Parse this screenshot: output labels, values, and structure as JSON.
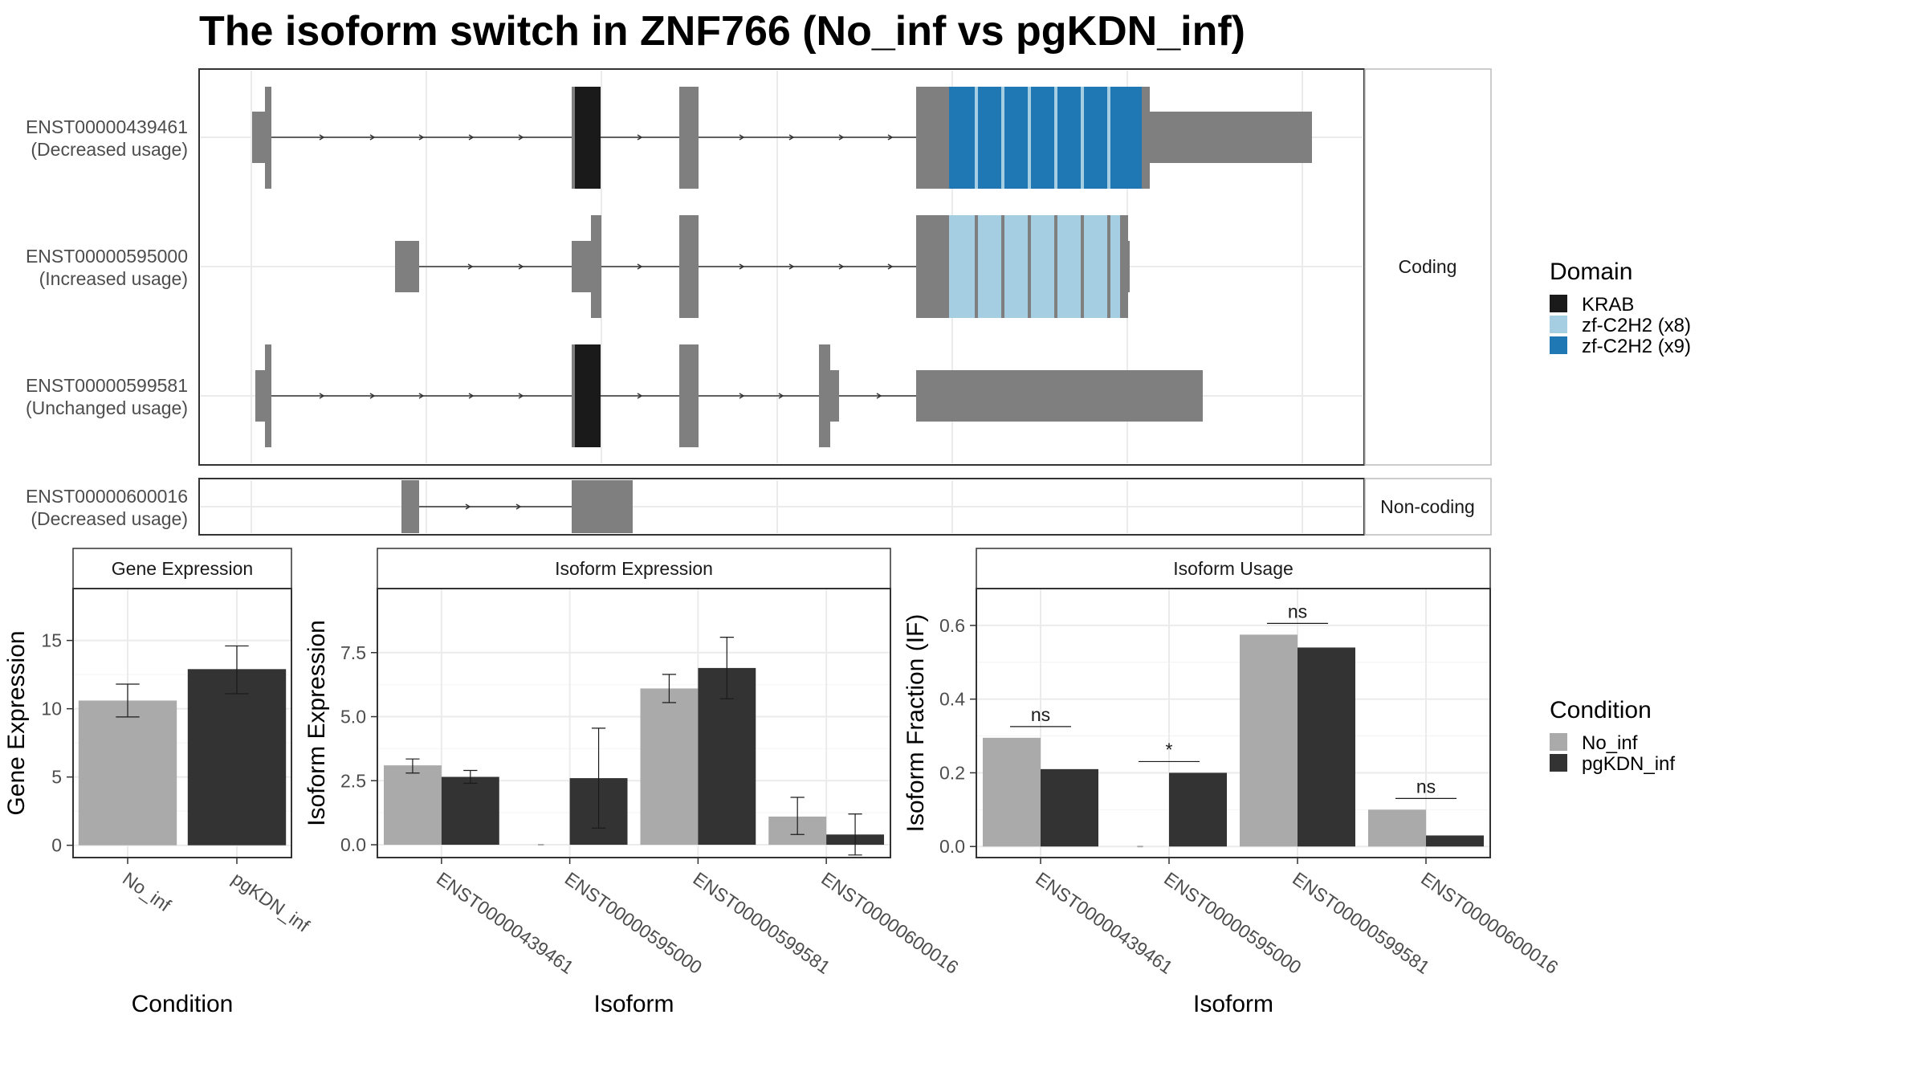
{
  "title": "The isoform switch in ZNF766 (No_inf vs pgKDN_inf)",
  "structure": {
    "coding_strip": "Coding",
    "noncoding_strip": "Non-coding",
    "isoforms": [
      {
        "id": "ENST00000439461",
        "usage": "(Decreased usage)",
        "group": "Coding"
      },
      {
        "id": "ENST00000595000",
        "usage": "(Increased usage)",
        "group": "Coding"
      },
      {
        "id": "ENST00000599581",
        "usage": "(Unchanged usage)",
        "group": "Coding"
      },
      {
        "id": "ENST00000600016",
        "usage": "(Decreased usage)",
        "group": "Non-coding"
      }
    ]
  },
  "domain_legend": {
    "title": "Domain",
    "items": [
      {
        "label": "KRAB",
        "color": "#1a1a1a"
      },
      {
        "label": "zf-C2H2 (x8)",
        "color": "#a6cee3"
      },
      {
        "label": "zf-C2H2 (x9)",
        "color": "#1f78b4"
      }
    ]
  },
  "condition_legend": {
    "title": "Condition",
    "items": [
      {
        "label": "No_inf",
        "color": "#aaaaaa"
      },
      {
        "label": "pgKDN_inf",
        "color": "#333333"
      }
    ]
  },
  "chart_data": [
    {
      "type": "bar",
      "title": "Gene Expression",
      "xlabel": "Condition",
      "ylabel": "Gene Expression",
      "categories": [
        "No_inf",
        "pgKDN_inf"
      ],
      "values": [
        10.6,
        12.9
      ],
      "error": [
        [
          9.4,
          11.8
        ],
        [
          11.1,
          14.6
        ]
      ],
      "ylim": [
        -0.9,
        18.8
      ],
      "yticks": [
        0,
        5,
        10,
        15
      ],
      "ytick_labels": [
        "0",
        "5",
        "10",
        "15"
      ],
      "grid": true
    },
    {
      "type": "bar",
      "title": "Isoform Expression",
      "xlabel": "Isoform",
      "ylabel": "Isoform Expression",
      "categories": [
        "ENST00000439461",
        "ENST00000595000",
        "ENST00000599581",
        "ENST00000600016"
      ],
      "series": [
        {
          "name": "No_inf",
          "values": [
            3.1,
            0.0,
            6.1,
            1.1
          ],
          "error": [
            [
              2.8,
              3.35
            ],
            [
              0.0,
              0.0
            ],
            [
              5.55,
              6.65
            ],
            [
              0.4,
              1.85
            ]
          ]
        },
        {
          "name": "pgKDN_inf",
          "values": [
            2.65,
            2.6,
            6.9,
            0.4
          ],
          "error": [
            [
              2.4,
              2.9
            ],
            [
              0.65,
              4.55
            ],
            [
              5.7,
              8.1
            ],
            [
              -0.4,
              1.2
            ]
          ]
        }
      ],
      "ylim": [
        -0.5,
        10.0
      ],
      "yticks": [
        0,
        2.5,
        5,
        7.5
      ],
      "ytick_labels": [
        "0.0",
        "2.5",
        "5.0",
        "7.5"
      ],
      "grid": true
    },
    {
      "type": "bar",
      "title": "Isoform Usage",
      "xlabel": "Isoform",
      "ylabel": "Isoform Fraction (IF)",
      "categories": [
        "ENST00000439461",
        "ENST00000595000",
        "ENST00000599581",
        "ENST00000600016"
      ],
      "series": [
        {
          "name": "No_inf",
          "values": [
            0.295,
            0.0,
            0.575,
            0.1
          ]
        },
        {
          "name": "pgKDN_inf",
          "values": [
            0.21,
            0.2,
            0.54,
            0.03
          ]
        }
      ],
      "significance": [
        "ns",
        "*",
        "ns",
        "ns"
      ],
      "ylim": [
        -0.03,
        0.7
      ],
      "yticks": [
        0,
        0.2,
        0.4,
        0.6
      ],
      "ytick_labels": [
        "0.0",
        "0.2",
        "0.4",
        "0.6"
      ],
      "grid": true
    }
  ]
}
